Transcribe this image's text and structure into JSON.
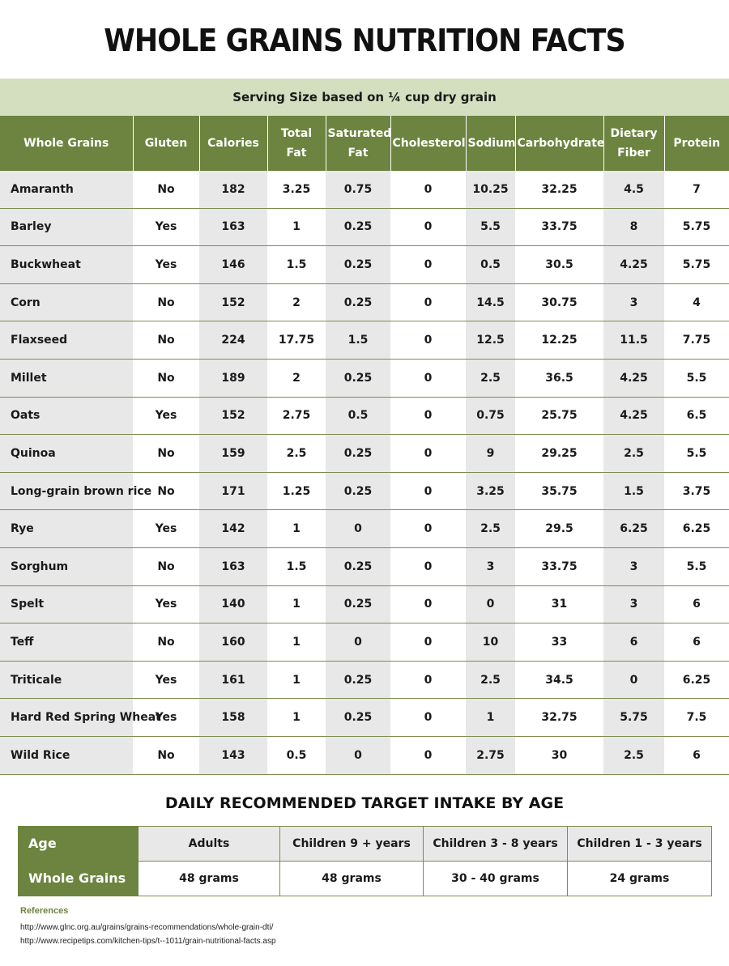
{
  "title": "WHOLE GRAINS NUTRITION FACTS",
  "serving": "Serving Size based on ¼ cup dry grain",
  "table": {
    "headers": [
      "Whole Grains",
      "Gluten",
      "Calories",
      "Total Fat",
      "Saturated Fat",
      "Cholesterol",
      "Sodium",
      "Carbohydrate",
      "Dietary Fiber",
      "Protein"
    ],
    "rows": [
      [
        "Amaranth",
        "No",
        "182",
        "3.25",
        "0.75",
        "0",
        "10.25",
        "32.25",
        "4.5",
        "7"
      ],
      [
        "Barley",
        "Yes",
        "163",
        "1",
        "0.25",
        "0",
        "5.5",
        "33.75",
        "8",
        "5.75"
      ],
      [
        "Buckwheat",
        "Yes",
        "146",
        "1.5",
        "0.25",
        "0",
        "0.5",
        "30.5",
        "4.25",
        "5.75"
      ],
      [
        "Corn",
        "No",
        "152",
        "2",
        "0.25",
        "0",
        "14.5",
        "30.75",
        "3",
        "4"
      ],
      [
        "Flaxseed",
        "No",
        "224",
        "17.75",
        "1.5",
        "0",
        "12.5",
        "12.25",
        "11.5",
        "7.75"
      ],
      [
        "Millet",
        "No",
        "189",
        "2",
        "0.25",
        "0",
        "2.5",
        "36.5",
        "4.25",
        "5.5"
      ],
      [
        "Oats",
        "Yes",
        "152",
        "2.75",
        "0.5",
        "0",
        "0.75",
        "25.75",
        "4.25",
        "6.5"
      ],
      [
        "Quinoa",
        "No",
        "159",
        "2.5",
        "0.25",
        "0",
        "9",
        "29.25",
        "2.5",
        "5.5"
      ],
      [
        "Long-grain brown rice",
        "No",
        "171",
        "1.25",
        "0.25",
        "0",
        "3.25",
        "35.75",
        "1.5",
        "3.75"
      ],
      [
        "Rye",
        "Yes",
        "142",
        "1",
        "0",
        "0",
        "2.5",
        "29.5",
        "6.25",
        "6.25"
      ],
      [
        "Sorghum",
        "No",
        "163",
        "1.5",
        "0.25",
        "0",
        "3",
        "33.75",
        "3",
        "5.5"
      ],
      [
        "Spelt",
        "Yes",
        "140",
        "1",
        "0.25",
        "0",
        "0",
        "31",
        "3",
        "6"
      ],
      [
        "Teff",
        "No",
        "160",
        "1",
        "0",
        "0",
        "10",
        "33",
        "6",
        "6"
      ],
      [
        "Triticale",
        "Yes",
        "161",
        "1",
        "0.25",
        "0",
        "2.5",
        "34.5",
        "0",
        "6.25"
      ],
      [
        "Hard Red Spring Wheat",
        "Yes",
        "158",
        "1",
        "0.25",
        "0",
        "1",
        "32.75",
        "5.75",
        "7.5"
      ],
      [
        "Wild Rice",
        "No",
        "143",
        "0.5",
        "0",
        "0",
        "2.75",
        "30",
        "2.5",
        "6"
      ]
    ]
  },
  "daily": {
    "title": "DAILY RECOMMENDED TARGET INTAKE BY AGE",
    "age_label": "Age",
    "grains_label": "Whole Grains",
    "ages": [
      "Adults",
      "Children 9 + years",
      "Children 3 - 8 years",
      "Children 1 - 3 years"
    ],
    "amounts": [
      "48 grams",
      "48 grams",
      "30 - 40 grams",
      "24 grams"
    ]
  },
  "references": {
    "title": "References",
    "links": [
      "http://www.glnc.org.au/grains/grains-recommendations/whole-grain-dti/",
      "http://www.recipetips.com/kitchen-tips/t--1011/grain-nutritional-facts.asp"
    ]
  },
  "colors": {
    "header_green": "#6c843f",
    "serving_band": "#d3dfbe",
    "shade_grey": "#e8e8e8"
  }
}
